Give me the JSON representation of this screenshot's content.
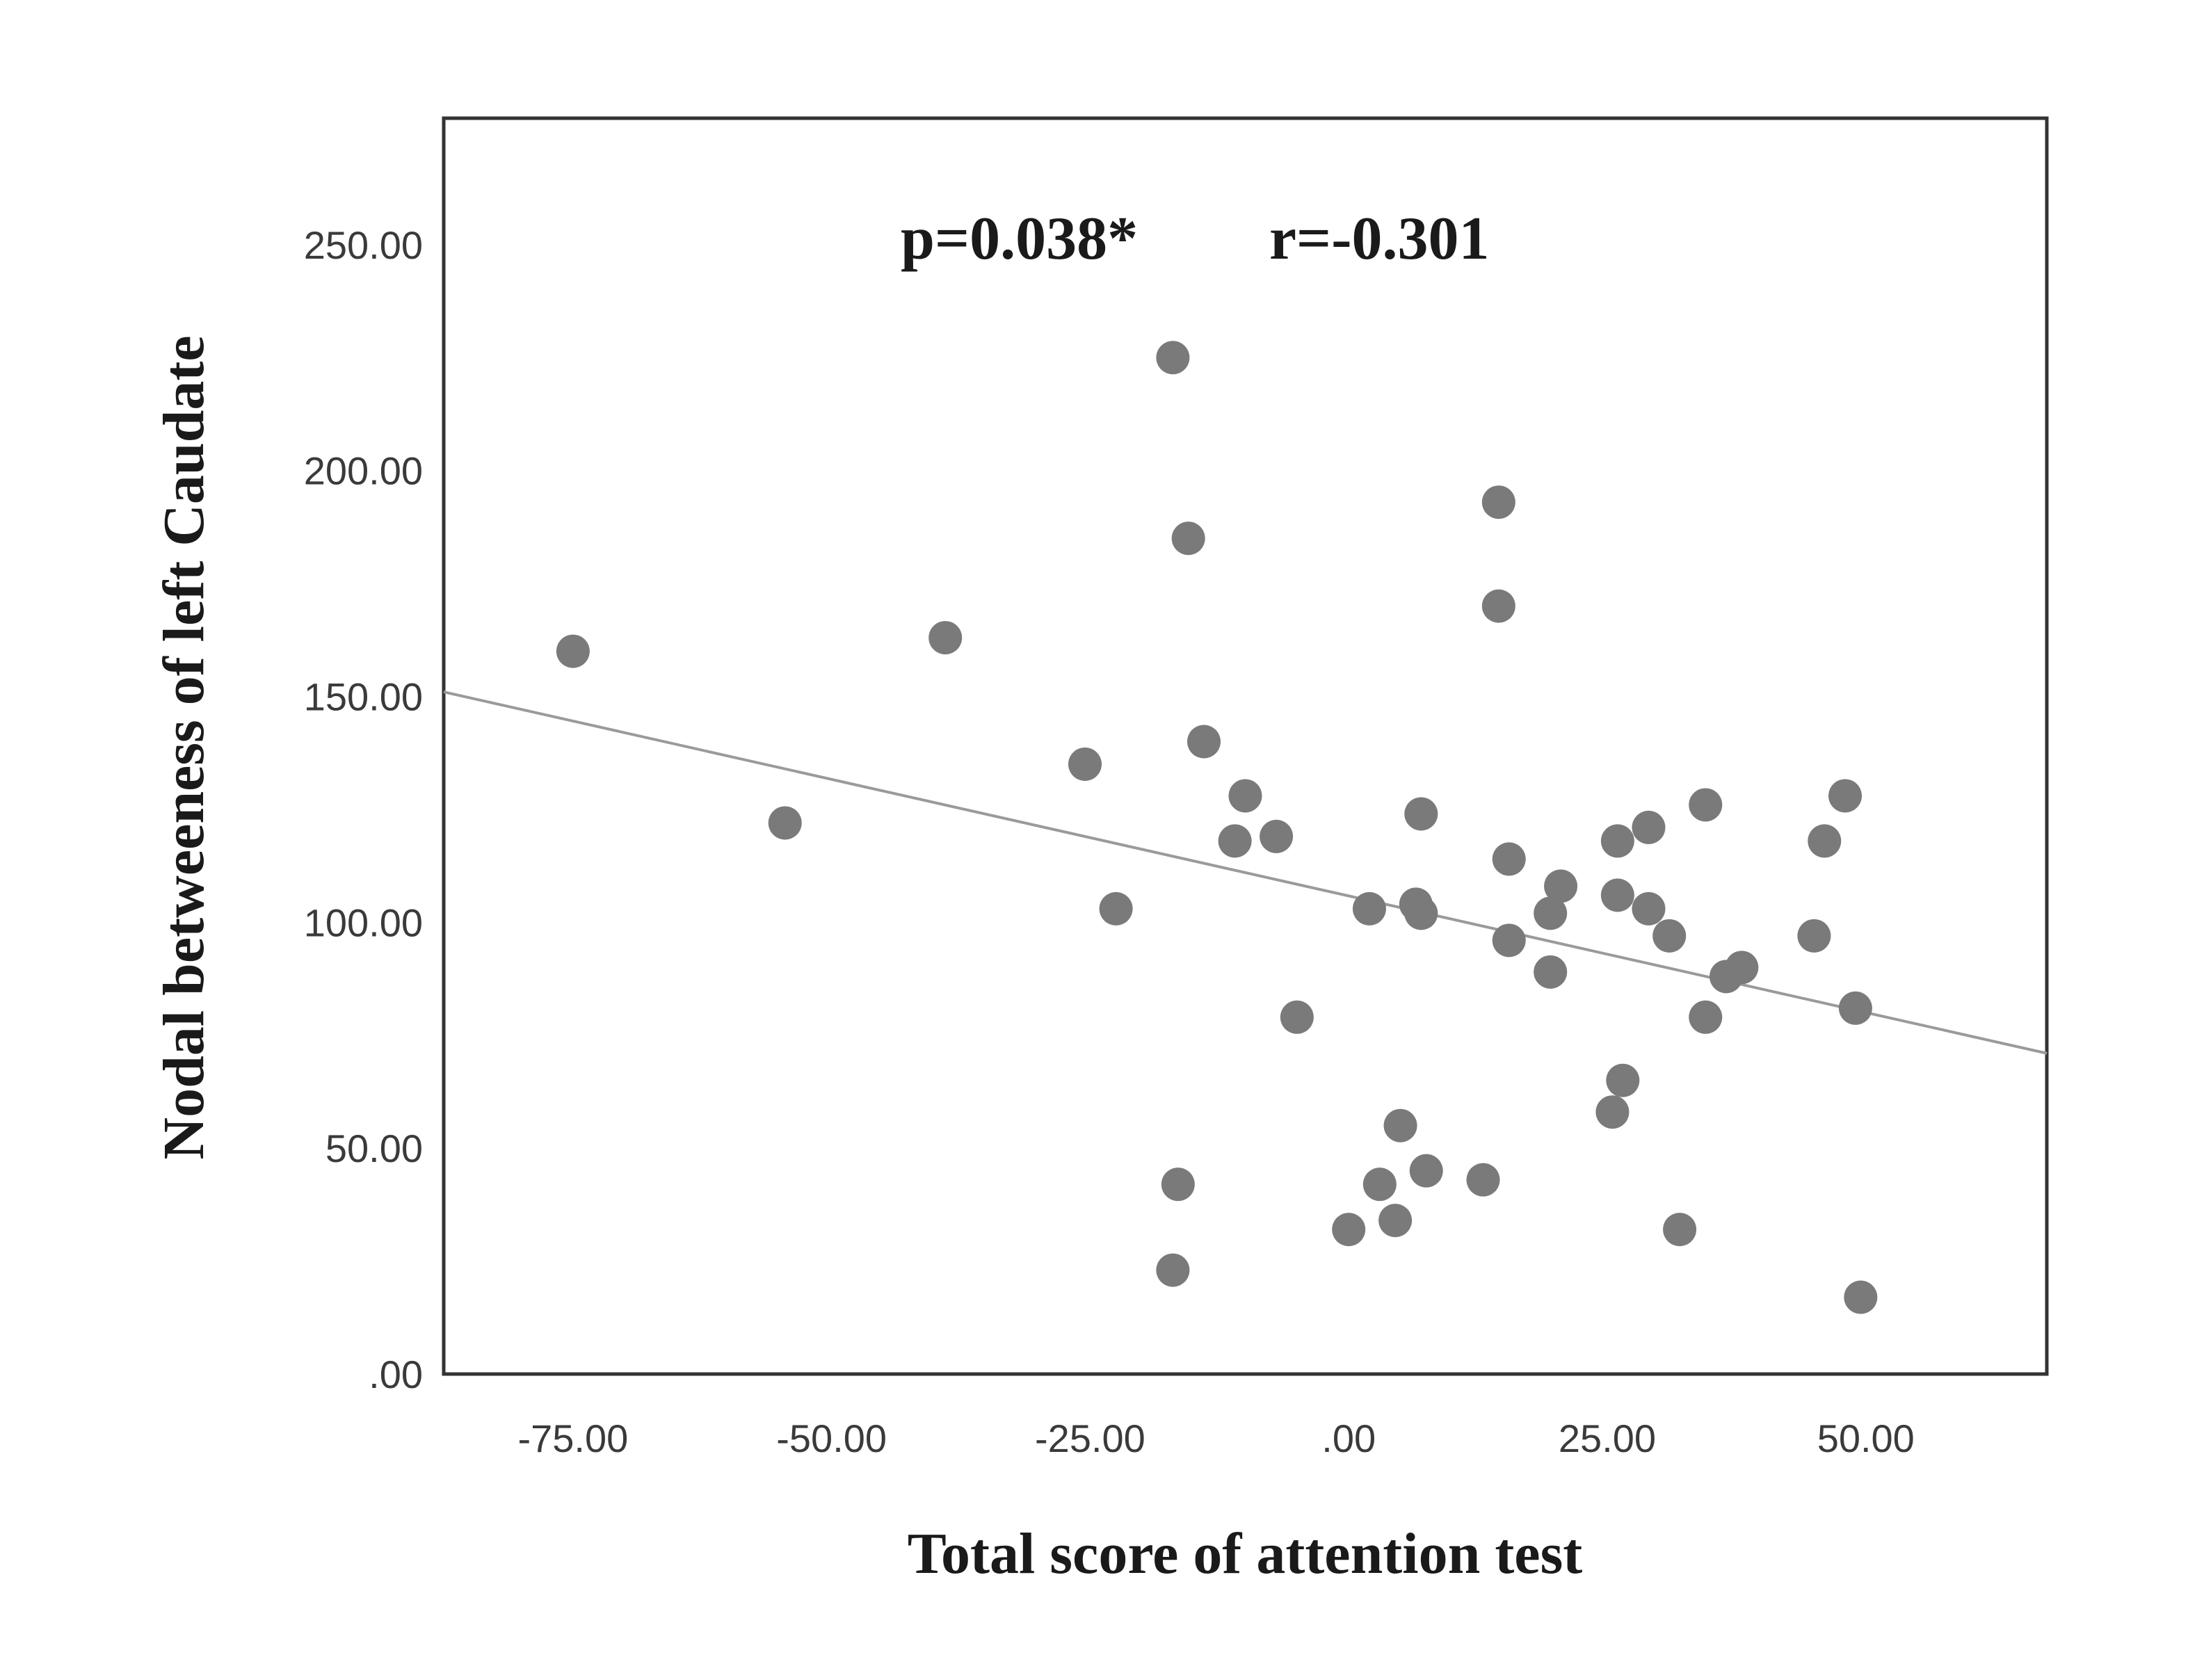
{
  "chart_data": {
    "type": "scatter",
    "xlabel": "Total score of attention test",
    "ylabel": "Nodal betweeness of left Caudate",
    "xlim": [
      -87.5,
      67.5
    ],
    "ylim": [
      0,
      278
    ],
    "x_ticks": [
      -75,
      -50,
      -25,
      0,
      25,
      50
    ],
    "x_tick_labels": [
      "-75.00",
      "-50.00",
      "-25.00",
      ".00",
      "25.00",
      "50.00"
    ],
    "y_ticks": [
      0,
      50,
      100,
      150,
      200,
      250
    ],
    "y_tick_labels": [
      ".00",
      "50.00",
      "100.00",
      "150.00",
      "200.00",
      "250.00"
    ],
    "grid": false,
    "annotations": {
      "p_text": "p=0.038*",
      "r_text": "r=-0.301"
    },
    "fit_line": {
      "x": [
        -87.5,
        67.5
      ],
      "y": [
        151,
        71
      ]
    },
    "marker_color": "#7a7a7a",
    "line_color": "#9a9a9a",
    "points": [
      {
        "x": -75,
        "y": 160
      },
      {
        "x": -54.5,
        "y": 122
      },
      {
        "x": -39,
        "y": 163
      },
      {
        "x": -25.5,
        "y": 135
      },
      {
        "x": -22.5,
        "y": 103
      },
      {
        "x": -17,
        "y": 225
      },
      {
        "x": -15.5,
        "y": 185
      },
      {
        "x": -14,
        "y": 140
      },
      {
        "x": -10,
        "y": 128
      },
      {
        "x": -11,
        "y": 118
      },
      {
        "x": -7,
        "y": 119
      },
      {
        "x": -5,
        "y": 79
      },
      {
        "x": -16.5,
        "y": 42
      },
      {
        "x": -17,
        "y": 23
      },
      {
        "x": 2,
        "y": 103
      },
      {
        "x": 6.5,
        "y": 104
      },
      {
        "x": 7,
        "y": 102
      },
      {
        "x": 7,
        "y": 124
      },
      {
        "x": 5,
        "y": 55
      },
      {
        "x": 3,
        "y": 42
      },
      {
        "x": 7.5,
        "y": 45
      },
      {
        "x": 4.5,
        "y": 34
      },
      {
        "x": 0,
        "y": 32
      },
      {
        "x": 14.5,
        "y": 193
      },
      {
        "x": 14.5,
        "y": 170
      },
      {
        "x": 15.5,
        "y": 114
      },
      {
        "x": 15.5,
        "y": 96
      },
      {
        "x": 13,
        "y": 43
      },
      {
        "x": 19.5,
        "y": 102
      },
      {
        "x": 20.5,
        "y": 108
      },
      {
        "x": 19.5,
        "y": 89
      },
      {
        "x": 26,
        "y": 118
      },
      {
        "x": 29,
        "y": 121
      },
      {
        "x": 26,
        "y": 106
      },
      {
        "x": 29,
        "y": 103
      },
      {
        "x": 31,
        "y": 97
      },
      {
        "x": 34.5,
        "y": 126
      },
      {
        "x": 26.5,
        "y": 65
      },
      {
        "x": 25.5,
        "y": 58
      },
      {
        "x": 34.5,
        "y": 79
      },
      {
        "x": 36.5,
        "y": 88
      },
      {
        "x": 38,
        "y": 90
      },
      {
        "x": 32,
        "y": 32
      },
      {
        "x": 45,
        "y": 97
      },
      {
        "x": 46,
        "y": 118
      },
      {
        "x": 48,
        "y": 128
      },
      {
        "x": 49,
        "y": 81
      },
      {
        "x": 49.5,
        "y": 17
      }
    ]
  }
}
